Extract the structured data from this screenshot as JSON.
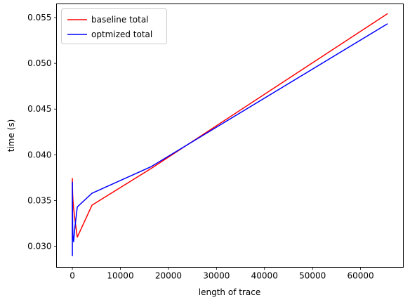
{
  "chart_data": {
    "type": "line",
    "xlabel": "length of trace",
    "ylabel": "time (s)",
    "xlim": [
      -3300,
      68900
    ],
    "ylim": [
      0.0277,
      0.0565
    ],
    "xticks": [
      0,
      10000,
      20000,
      30000,
      40000,
      50000,
      60000
    ],
    "xtick_labels": [
      "0",
      "10000",
      "20000",
      "30000",
      "40000",
      "50000",
      "60000"
    ],
    "yticks": [
      0.03,
      0.035,
      0.04,
      0.045,
      0.05,
      0.055
    ],
    "ytick_labels": [
      "0.030",
      "0.035",
      "0.040",
      "0.045",
      "0.050",
      "0.055"
    ],
    "legend": {
      "position": "top-left"
    },
    "grid": false,
    "series": [
      {
        "name": "baseline total",
        "color": "#ff0000",
        "x": [
          1,
          2,
          4,
          8,
          16,
          32,
          64,
          128,
          256,
          512,
          1024,
          4096,
          16384,
          65536
        ],
        "y": [
          0.0308,
          0.0372,
          0.0374,
          0.0368,
          0.0366,
          0.0362,
          0.0356,
          0.035,
          0.0342,
          0.033,
          0.031,
          0.0345,
          0.0385,
          0.0554
        ]
      },
      {
        "name": "optmized total",
        "color": "#0000ff",
        "x": [
          1,
          2,
          4,
          8,
          16,
          32,
          64,
          128,
          256,
          512,
          1024,
          4096,
          16384,
          65536
        ],
        "y": [
          0.029,
          0.0368,
          0.037,
          0.0366,
          0.0355,
          0.034,
          0.032,
          0.031,
          0.0305,
          0.032,
          0.0343,
          0.0358,
          0.0387,
          0.0543
        ]
      }
    ]
  }
}
